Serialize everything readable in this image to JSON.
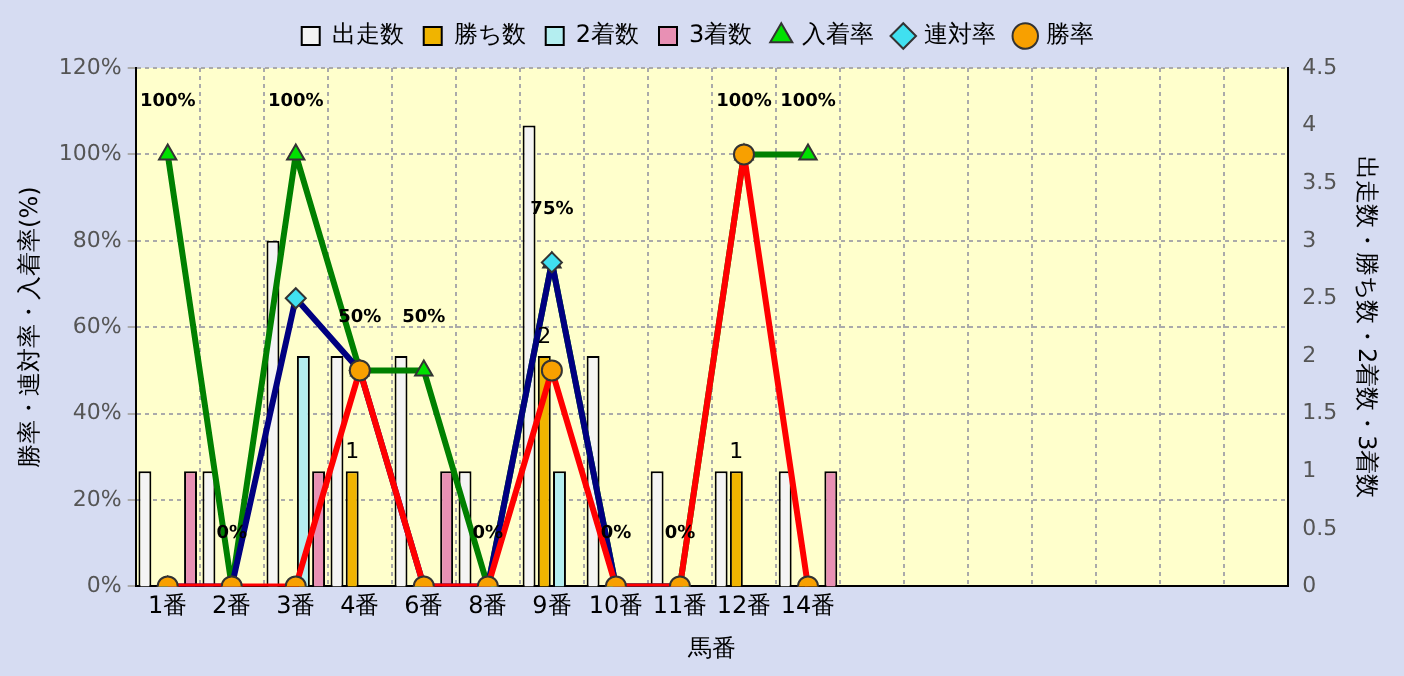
{
  "chart_data": {
    "type": "bar",
    "xlabel": "馬番",
    "ylabel": "勝率・連対率・入着率(%)",
    "y2label": "出走数・勝ち数・2着数・3着数",
    "categories": [
      "1番",
      "2番",
      "3番",
      "4番",
      "6番",
      "8番",
      "9番",
      "10番",
      "11番",
      "12番",
      "14番",
      null,
      null,
      null,
      null,
      null,
      null,
      null
    ],
    "series": [
      {
        "name": "出走数",
        "axis": "y2",
        "color": "#f4f4f4",
        "values": [
          1,
          1,
          3,
          2,
          2,
          1,
          4,
          2,
          1,
          1,
          1,
          null,
          null,
          null,
          null,
          null,
          null,
          null
        ]
      },
      {
        "name": "勝ち数",
        "axis": "y2",
        "color": "#f0b400",
        "values": [
          0,
          0,
          0,
          1,
          0,
          0,
          2,
          0,
          0,
          1,
          0,
          null,
          null,
          null,
          null,
          null,
          null,
          null
        ],
        "value_labels": [
          null,
          null,
          null,
          "1",
          null,
          null,
          "2",
          null,
          null,
          "1",
          null,
          null,
          null,
          null,
          null,
          null,
          null,
          null
        ]
      },
      {
        "name": "2着数",
        "axis": "y2",
        "color": "#b4eef0",
        "values": [
          0,
          0,
          2,
          0,
          0,
          0,
          1,
          0,
          0,
          0,
          0,
          null,
          null,
          null,
          null,
          null,
          null,
          null
        ]
      },
      {
        "name": "3着数",
        "axis": "y2",
        "color": "#e890b4",
        "values": [
          1,
          0,
          1,
          0,
          1,
          0,
          0,
          0,
          0,
          0,
          1,
          null,
          null,
          null,
          null,
          null,
          null,
          null
        ]
      },
      {
        "name": "入着率",
        "type": "line",
        "axis": "y",
        "color": "#008000",
        "marker": "triangle",
        "values": [
          100,
          0,
          100,
          50,
          50,
          0,
          75,
          0,
          0,
          100,
          100,
          null,
          null,
          null,
          null,
          null,
          null,
          null
        ],
        "value_labels": [
          "100%",
          "0%",
          "100%",
          "50%",
          "50%",
          "0%",
          "75%",
          "0%",
          "0%",
          "100%",
          "100%",
          null,
          null,
          null,
          null,
          null,
          null,
          null
        ]
      },
      {
        "name": "連対率",
        "type": "line",
        "axis": "y",
        "color": "#000080",
        "marker": "diamond",
        "values": [
          0,
          0,
          66.7,
          50,
          0,
          0,
          75,
          0,
          0,
          null,
          null,
          null,
          null,
          null,
          null,
          null,
          null,
          null
        ]
      },
      {
        "name": "勝率",
        "type": "line",
        "axis": "y",
        "color": "#ff0000",
        "marker": "circle",
        "values": [
          0,
          0,
          0,
          50,
          0,
          0,
          50,
          0,
          0,
          100,
          0,
          null,
          null,
          null,
          null,
          null,
          null,
          null
        ]
      }
    ],
    "ylim": [
      0,
      120
    ],
    "yticks": [
      {
        "value": 0,
        "label": "0%"
      },
      {
        "value": 20,
        "label": "20%"
      },
      {
        "value": 40,
        "label": "40%"
      },
      {
        "value": 60,
        "label": "60%"
      },
      {
        "value": 80,
        "label": "80%"
      },
      {
        "value": 100,
        "label": "100%"
      },
      {
        "value": 120,
        "label": "120%"
      }
    ],
    "y2lim": [
      0,
      4.5
    ],
    "y2ticks": [
      0,
      0.5,
      1,
      1.5,
      2,
      2.5,
      3,
      3.5,
      4,
      4.5
    ],
    "grid": true,
    "legend": "top"
  }
}
